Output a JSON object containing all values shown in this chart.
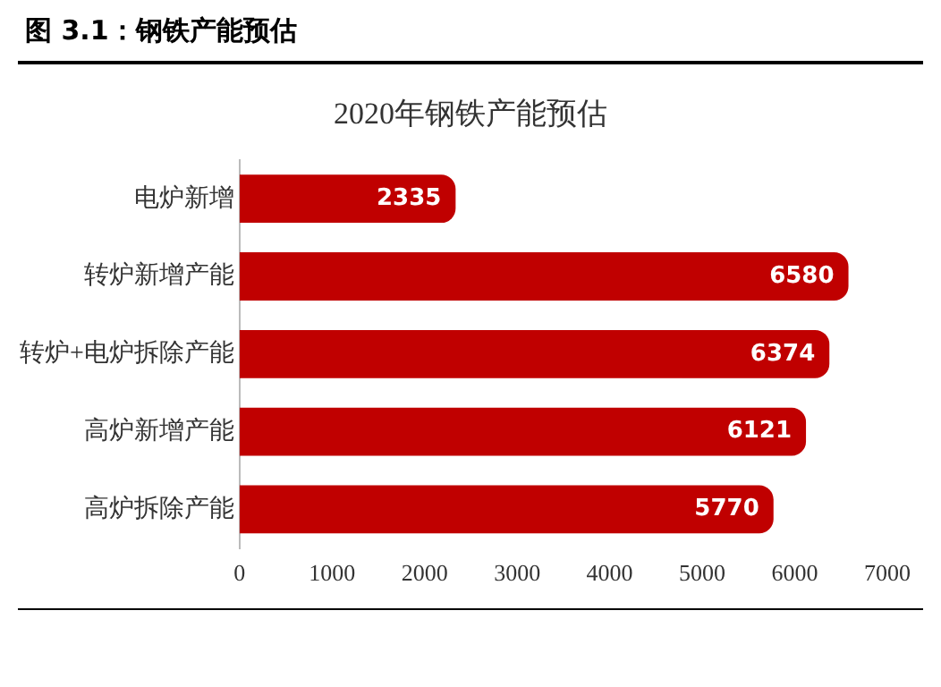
{
  "chart_data": {
    "type": "bar",
    "orientation": "horizontal",
    "title": "图 3.1：钢铁产能预估",
    "subtitle": "2020年钢铁产能预估",
    "categories": [
      "电炉新增",
      "转炉新增产能",
      "转炉+电炉拆除产能",
      "高炉新增产能",
      "高炉拆除产能"
    ],
    "values": [
      2335,
      6580,
      6374,
      6121,
      5770
    ],
    "color": "#c00000",
    "xlim": [
      0,
      7000
    ],
    "xticks": [
      0,
      1000,
      2000,
      3000,
      4000,
      5000,
      6000,
      7000
    ],
    "grid": false,
    "data_labels": true
  }
}
